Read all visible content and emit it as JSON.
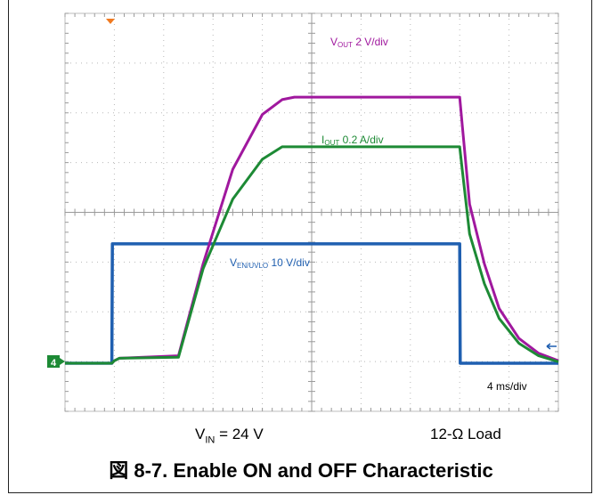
{
  "chart_data": {
    "type": "line",
    "xlabel": "",
    "ylabel": "",
    "grid": true,
    "divisions": {
      "x": 10,
      "y": 8
    },
    "timebase": "4 ms/div",
    "x_unit_ms_per_div": 4,
    "series": [
      {
        "name": "VOUT 2 V/div",
        "label_main": "V",
        "label_sub": "OUT",
        "label_rest": " 2 V/div",
        "color": "#a0189e",
        "x_div": [
          0,
          0.95,
          1.0,
          1.1,
          2.3,
          2.8,
          3.4,
          4.0,
          4.4,
          4.65,
          8.0,
          8.05,
          8.2,
          8.5,
          8.8,
          9.2,
          9.6,
          10.0
        ],
        "y_div": [
          0,
          0,
          0.05,
          0.1,
          0.15,
          2.0,
          3.9,
          5.0,
          5.3,
          5.35,
          5.35,
          4.8,
          3.2,
          2.0,
          1.1,
          0.5,
          0.2,
          0.05
        ]
      },
      {
        "name": "IOUT 0.2 A/div",
        "label_main": "I",
        "label_sub": "OUT",
        "label_rest": " 0.2 A/div",
        "color": "#1d8a35",
        "x_div": [
          0,
          0.95,
          1.0,
          1.1,
          2.3,
          2.8,
          3.4,
          4.0,
          4.4,
          4.65,
          8.0,
          8.05,
          8.2,
          8.5,
          8.8,
          9.2,
          9.6,
          10.0
        ],
        "y_div": [
          0,
          0,
          0.05,
          0.1,
          0.12,
          1.9,
          3.3,
          4.1,
          4.35,
          4.35,
          4.35,
          3.9,
          2.6,
          1.6,
          0.9,
          0.4,
          0.15,
          0.03
        ]
      },
      {
        "name": "VEN/UVLO 10 V/div",
        "label_main": "V",
        "label_sub": "EN/UVLO",
        "label_rest": " 10 V/div",
        "color": "#1f5fb0",
        "x_div": [
          0,
          0.95,
          0.96,
          8.0,
          8.01,
          10.0
        ],
        "y_div": [
          0,
          0,
          2.4,
          2.4,
          0,
          0
        ]
      }
    ],
    "markers": {
      "channel_4": "4"
    }
  },
  "annotations": {
    "vin_main": "V",
    "vin_sub": "IN",
    "vin_rest": " = 24 V",
    "load": "12-Ω Load"
  },
  "caption": "図 8-7. Enable ON and OFF Characteristic"
}
